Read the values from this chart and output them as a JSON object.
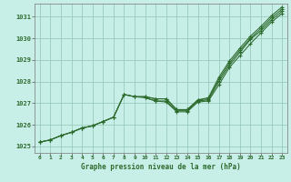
{
  "title": "Graphe pression niveau de la mer (hPa)",
  "bg_color": "#c8eee8",
  "grid_color": "#99ccbb",
  "line_color": "#2d6b2d",
  "xlim": [
    -0.5,
    23.5
  ],
  "ylim": [
    1024.7,
    1031.6
  ],
  "ytick_vals": [
    1025,
    1026,
    1027,
    1028,
    1029,
    1030,
    1031
  ],
  "xtick_vals": [
    0,
    1,
    2,
    3,
    4,
    5,
    6,
    7,
    8,
    9,
    10,
    11,
    12,
    13,
    14,
    15,
    16,
    17,
    18,
    19,
    20,
    21,
    22,
    23
  ],
  "line1": [
    1025.2,
    1025.3,
    1025.5,
    1025.65,
    1025.85,
    1025.95,
    1026.15,
    1026.35,
    1027.4,
    1027.3,
    1027.25,
    1027.1,
    1027.1,
    1026.65,
    1026.65,
    1027.1,
    1027.15,
    1028.0,
    1028.75,
    1029.35,
    1029.95,
    1030.35,
    1030.85,
    1031.25
  ],
  "line2": [
    1025.2,
    1025.3,
    1025.5,
    1025.65,
    1025.85,
    1025.95,
    1026.15,
    1026.35,
    1027.4,
    1027.3,
    1027.3,
    1027.2,
    1027.2,
    1026.7,
    1026.7,
    1027.15,
    1027.2,
    1028.1,
    1028.85,
    1029.45,
    1030.0,
    1030.45,
    1030.95,
    1031.35
  ],
  "line3": [
    1025.2,
    1025.3,
    1025.5,
    1025.65,
    1025.85,
    1025.95,
    1026.15,
    1026.35,
    1027.4,
    1027.3,
    1027.3,
    1027.2,
    1027.2,
    1026.7,
    1026.7,
    1027.15,
    1027.25,
    1028.2,
    1028.95,
    1029.55,
    1030.1,
    1030.55,
    1031.05,
    1031.45
  ],
  "line4_x": [
    10,
    11,
    12,
    13,
    14,
    15,
    16,
    17,
    18,
    19,
    20,
    21,
    22,
    23
  ],
  "line4_y": [
    1027.25,
    1027.1,
    1027.05,
    1026.6,
    1026.6,
    1027.05,
    1027.1,
    1027.85,
    1028.65,
    1029.2,
    1029.75,
    1030.25,
    1030.75,
    1031.15
  ]
}
